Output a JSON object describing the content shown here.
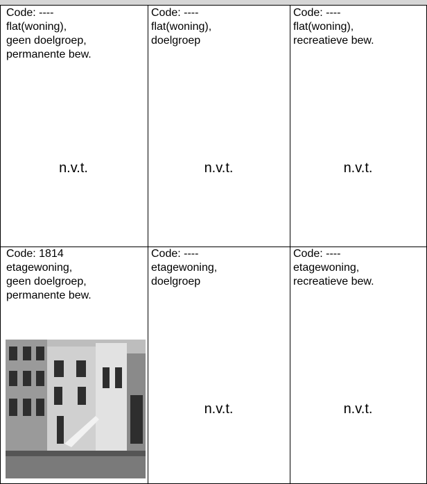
{
  "table": {
    "rows": [
      [
        {
          "lines": [
            "Code: ----",
            "flat(woning),",
            "geen doelgroep,",
            "permanente bew."
          ],
          "note": "n.v.t."
        },
        {
          "lines": [
            "Code: ----",
            "flat(woning),",
            "doelgroep"
          ],
          "note": "n.v.t."
        },
        {
          "lines": [
            "Code: ----",
            "flat(woning),",
            "recreatieve bew."
          ],
          "note": "n.v.t."
        }
      ],
      [
        {
          "lines": [
            "Code: 1814",
            "etagewoning,",
            "geen doelgroep,",
            "permanente bew."
          ]
        },
        {
          "lines": [
            "Code: ----",
            "etagewoning,",
            "doelgroep"
          ],
          "note": "n.v.t."
        },
        {
          "lines": [
            "Code: ----",
            "etagewoning,",
            "recreatieve bew."
          ],
          "note": "n.v.t."
        }
      ]
    ]
  }
}
